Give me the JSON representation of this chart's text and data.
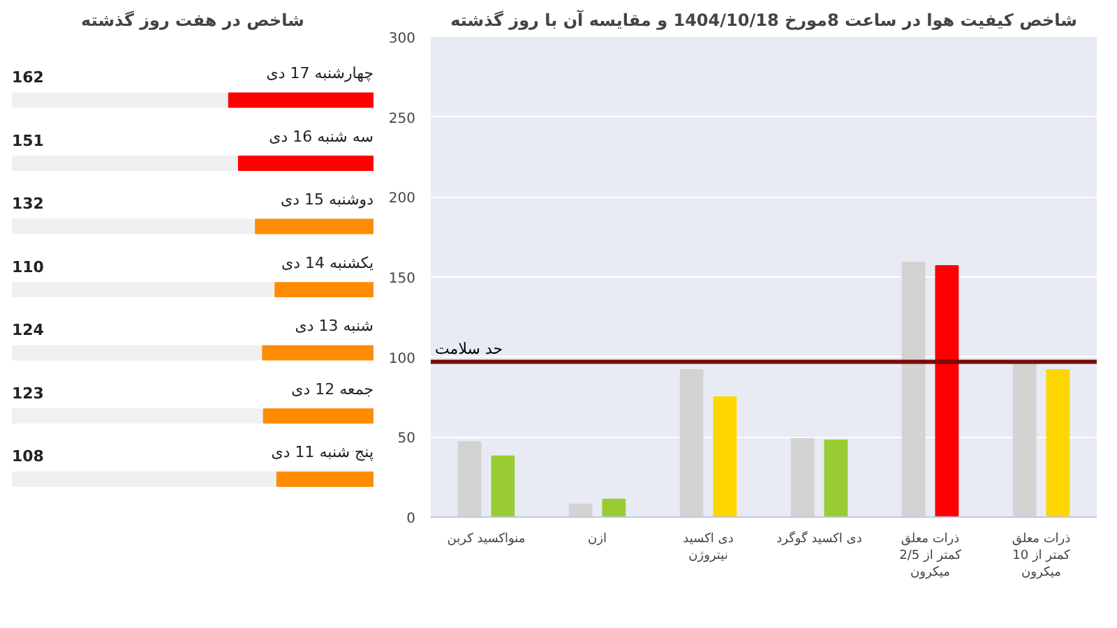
{
  "chart_data": [
    {
      "type": "bar",
      "orientation": "horizontal",
      "title": "شاخص در هفت روز گذشته",
      "categories": [
        "چهارشنبه 17 دی",
        "سه شنبه 16 دی",
        "دوشنبه 15 دی",
        "یکشنبه 14 دی",
        "شنبه 13 دی",
        "جمعه 12 دی",
        "پنج شنبه 11 دی"
      ],
      "values": [
        162,
        151,
        132,
        110,
        124,
        123,
        108
      ],
      "colors": [
        "#ff0000",
        "#ff0000",
        "#ff8c00",
        "#ff8c00",
        "#ff8c00",
        "#ff8c00",
        "#ff8c00"
      ],
      "xlim": [
        405,
        0
      ],
      "data_labels": true,
      "tick_labels": false,
      "grid": false
    },
    {
      "type": "bar",
      "title": "شاخص کیفیت هوا در ساعت 8مورخ 1404/10/18 و مقایسه آن با روز گذشته",
      "categories": [
        "منواکسید کربن",
        "ازن",
        "دی اکسید نیتروژن",
        "دی اکسید گوگرد",
        "ذرات معلق کمتر از 2/5 میکرون",
        "ذرات معلق کمتر از 10 میکرون"
      ],
      "series": [
        {
          "color": "#d3d3d3",
          "values": [
            47,
            8,
            92,
            49,
            159,
            96
          ]
        },
        {
          "colors": [
            "#99cc33",
            "#99cc33",
            "#ffd700",
            "#99cc33",
            "#ff0000",
            "#ffd700"
          ],
          "values": [
            38,
            11,
            75,
            48,
            157,
            92
          ]
        }
      ],
      "ylim": [
        0,
        300
      ],
      "yticks": [
        0,
        50,
        100,
        150,
        200,
        250,
        300
      ],
      "grid": "y",
      "ref_lines": [
        {
          "axis": "y",
          "value": 97,
          "label": "حد سلامت",
          "color": "#7b0a0a"
        }
      ]
    }
  ]
}
